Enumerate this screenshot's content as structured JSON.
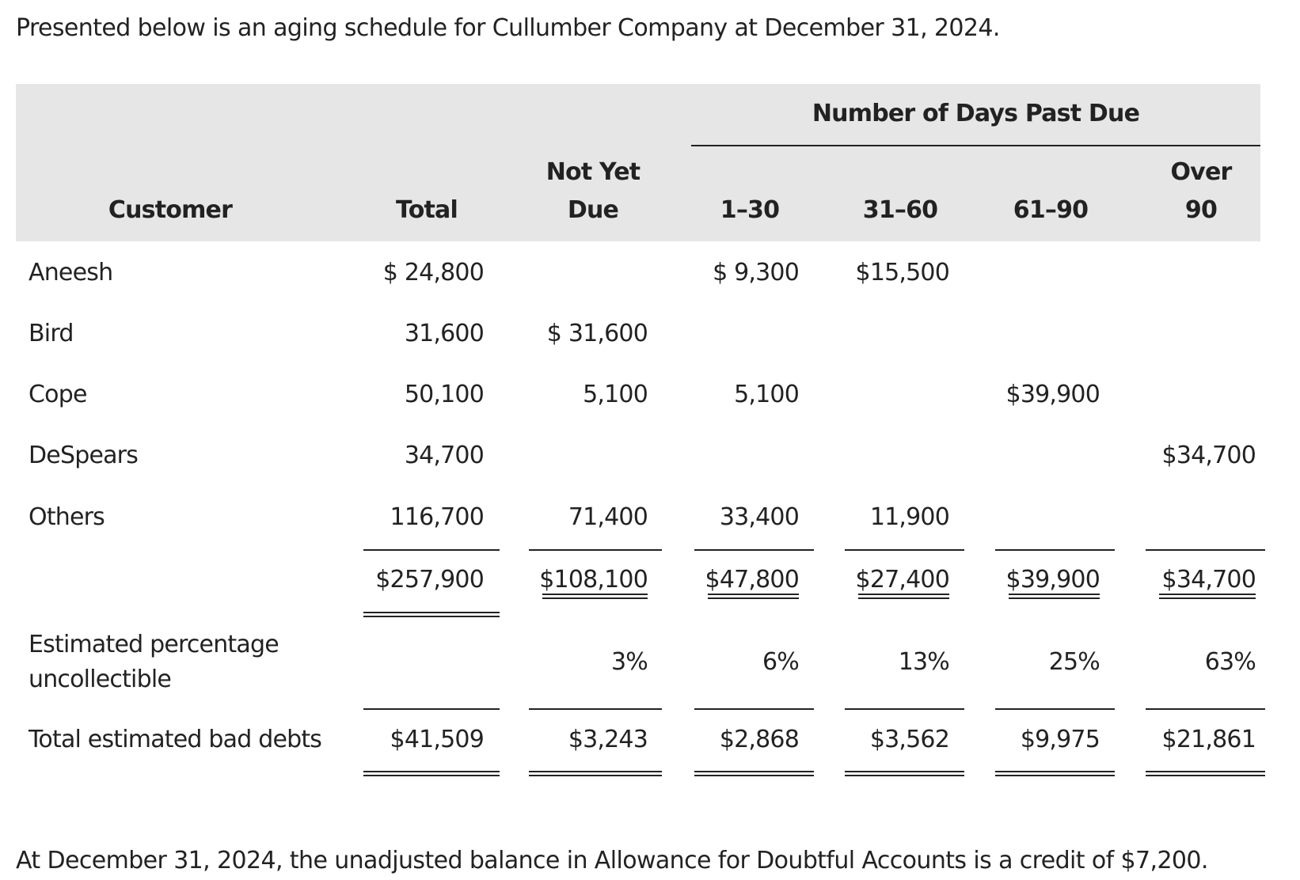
{
  "intro": "Presented below is an aging schedule for Cullumber Company at December 31, 2024.",
  "footer": "At December 31, 2024, the unadjusted balance in Allowance for Doubtful Accounts is a credit of $7,200.",
  "table": {
    "group_header": "Number of Days Past Due",
    "headers": {
      "customer": "Customer",
      "total": "Total",
      "not_yet_due_1": "Not Yet",
      "not_yet_due_2": "Due",
      "d1_30": "1–30",
      "d31_60": "31–60",
      "d61_90": "61–90",
      "over_90_1": "Over",
      "over_90_2": "90"
    },
    "rows": [
      {
        "customer": "Aneesh",
        "total": "$ 24,800",
        "not_yet_due": "",
        "d1_30": "$ 9,300",
        "d31_60": "$15,500",
        "d61_90": "",
        "over_90": ""
      },
      {
        "customer": "Bird",
        "total": "31,600",
        "not_yet_due": "$ 31,600",
        "d1_30": "",
        "d31_60": "",
        "d61_90": "",
        "over_90": ""
      },
      {
        "customer": "Cope",
        "total": "50,100",
        "not_yet_due": "5,100",
        "d1_30": "5,100",
        "d31_60": "",
        "d61_90": "$39,900",
        "over_90": ""
      },
      {
        "customer": "DeSpears",
        "total": "34,700",
        "not_yet_due": "",
        "d1_30": "",
        "d31_60": "",
        "d61_90": "",
        "over_90": "$34,700"
      },
      {
        "customer": "Others",
        "total": "116,700",
        "not_yet_due": "71,400",
        "d1_30": "33,400",
        "d31_60": "11,900",
        "d61_90": "",
        "over_90": ""
      }
    ],
    "totals": {
      "total": "$257,900",
      "not_yet_due": "$108,100",
      "d1_30": "$47,800",
      "d31_60": "$27,400",
      "d61_90": "$39,900",
      "over_90": "$34,700"
    },
    "percentage_row": {
      "label_1": "Estimated percentage",
      "label_2": "uncollectible",
      "not_yet_due": "3%",
      "d1_30": "6%",
      "d31_60": "13%",
      "d61_90": "25%",
      "over_90": "63%"
    },
    "bad_debts_row": {
      "label": "Total estimated bad debts",
      "total": "$41,509",
      "not_yet_due": "$3,243",
      "d1_30": "$2,868",
      "d31_60": "$3,562",
      "d61_90": "$9,975",
      "over_90": "$21,861"
    }
  }
}
